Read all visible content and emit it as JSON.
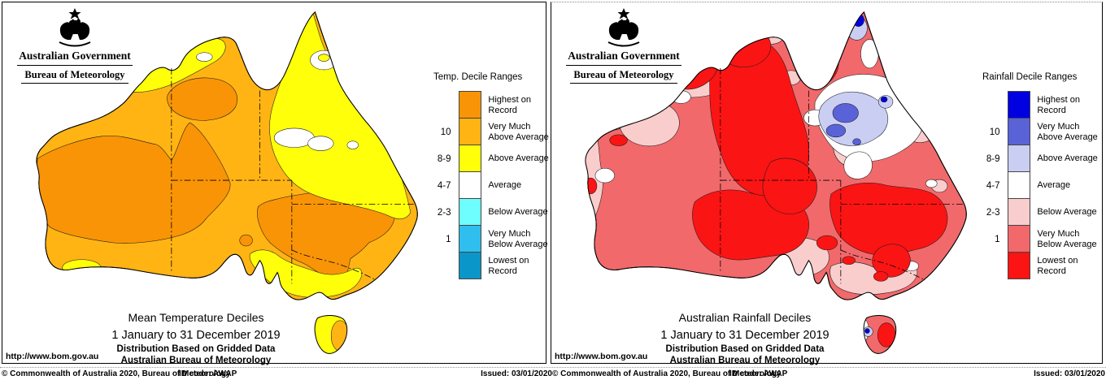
{
  "header": {
    "gov_title": "Australian Government",
    "bureau_title": "Bureau of Meteorology"
  },
  "footer": {
    "copyright": "© Commonwealth of Australia 2020, Bureau of Meteorology",
    "id_code": "ID code: AWAP",
    "issued": "Issued: 03/01/2020"
  },
  "panels": [
    {
      "id": "temperature",
      "legend_title": "Temp. Decile Ranges",
      "caption_title": "Mean Temperature Deciles",
      "caption_period": "1 January to 31 December 2019",
      "caption_line3": "Distribution Based on Gridded Data",
      "caption_line4": "Australian Bureau of Meteorology",
      "url": "http://www.bom.gov.au",
      "legend": {
        "items": [
          {
            "decile": "",
            "label": "Highest on Record",
            "color": "#F89406"
          },
          {
            "decile": "10",
            "label": "Very Much Above Average",
            "color": "#FFB414"
          },
          {
            "decile": "8-9",
            "label": "Above Average",
            "color": "#FFFF0A"
          },
          {
            "decile": "4-7",
            "label": "Average",
            "color": "#FFFFFF"
          },
          {
            "decile": "2-3",
            "label": "Below Average",
            "color": "#6EFEFE"
          },
          {
            "decile": "1",
            "label": "Very Much Below Average",
            "color": "#2FBEEE"
          },
          {
            "decile": "",
            "label": "Lowest on Record",
            "color": "#0A96C8"
          }
        ]
      }
    },
    {
      "id": "rainfall",
      "legend_title": "Rainfall Decile Ranges",
      "caption_title": "Australian Rainfall Deciles",
      "caption_period": "1 January to 31 December 2019",
      "caption_line3": "Distribution Based on Gridded Data",
      "caption_line4": "Australian Bureau of Meteorology",
      "url": "http://www.bom.gov.au",
      "legend": {
        "items": [
          {
            "decile": "",
            "label": "Highest on Record",
            "color": "#0000E1"
          },
          {
            "decile": "10",
            "label": "Very Much Above Average",
            "color": "#5A62D8"
          },
          {
            "decile": "8-9",
            "label": "Above Average",
            "color": "#CACEF3"
          },
          {
            "decile": "4-7",
            "label": "Average",
            "color": "#FFFFFF"
          },
          {
            "decile": "2-3",
            "label": "Below Average",
            "color": "#FACDCD"
          },
          {
            "decile": "1",
            "label": "Very Much Below Average",
            "color": "#F1696B"
          },
          {
            "decile": "",
            "label": "Lowest on Record",
            "color": "#FA1414"
          }
        ]
      }
    }
  ]
}
